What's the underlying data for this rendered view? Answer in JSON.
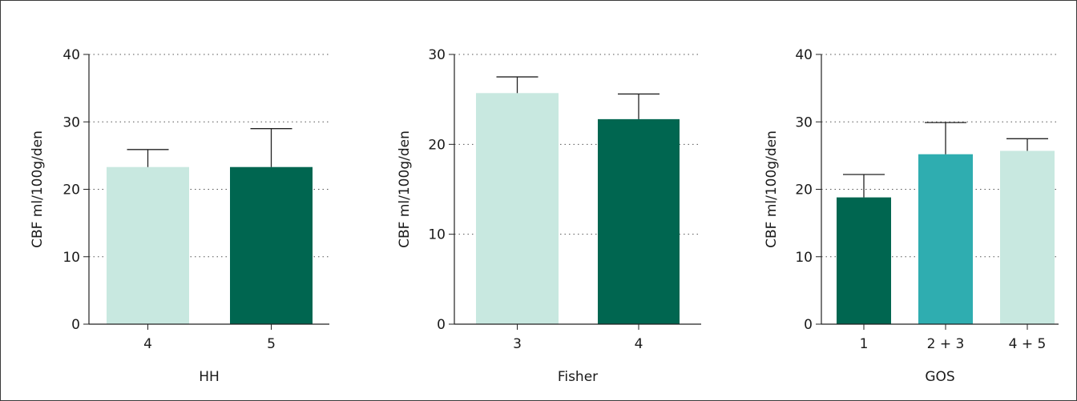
{
  "chart_data": [
    {
      "type": "bar",
      "title": "",
      "xlabel": "HH",
      "ylabel": "CBF ml/100g/den",
      "ylim": [
        0,
        40
      ],
      "yticks": [
        0,
        10,
        20,
        30,
        40
      ],
      "grid": "horizontal-dotted",
      "categories": [
        "4",
        "5"
      ],
      "values": [
        23.3,
        23.3
      ],
      "errors": [
        2.6,
        5.7
      ],
      "colors": [
        "#c8e8e0",
        "#006650"
      ]
    },
    {
      "type": "bar",
      "title": "",
      "xlabel": "Fisher",
      "ylabel": "CBF ml/100g/den",
      "ylim": [
        0,
        30
      ],
      "yticks": [
        0,
        10,
        20,
        30
      ],
      "grid": "horizontal-dotted",
      "categories": [
        "3",
        "4"
      ],
      "values": [
        25.7,
        22.8
      ],
      "errors": [
        1.8,
        2.8
      ],
      "colors": [
        "#c8e8e0",
        "#006650"
      ]
    },
    {
      "type": "bar",
      "title": "",
      "xlabel": "GOS",
      "ylabel": "CBF ml/100g/den",
      "ylim": [
        0,
        40
      ],
      "yticks": [
        0,
        10,
        20,
        30,
        40
      ],
      "grid": "horizontal-dotted",
      "categories": [
        "1",
        "2 + 3",
        "4 + 5"
      ],
      "values": [
        18.8,
        25.2,
        25.7
      ],
      "errors": [
        3.4,
        4.7,
        1.8
      ],
      "colors": [
        "#006650",
        "#2fadb0",
        "#c8e8e0"
      ]
    }
  ]
}
